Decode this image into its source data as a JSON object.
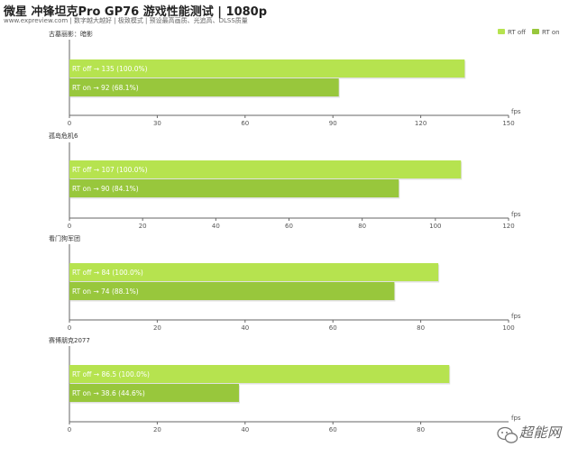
{
  "title": "微星 冲锋坦克Pro GP76 游戏性能测试 | 1080p",
  "subtitle": "www.expreview.com | 数字越大越好 | 极致模式 | 预设最高画质、光追高、DLSS质量",
  "legend": [
    {
      "name": "RT off",
      "color": "#b6e34f"
    },
    {
      "name": "RT on",
      "color": "#98c73c"
    }
  ],
  "watermark": "超能网",
  "chart_data": [
    {
      "type": "bar",
      "orientation": "horizontal",
      "title": "古墓丽影：暗影",
      "xlabel": "fps",
      "xlim": [
        0,
        150
      ],
      "xticks": [
        0,
        30,
        60,
        90,
        120,
        150
      ],
      "series": [
        {
          "name": "RT off",
          "values": [
            135
          ],
          "label": "RT off  →  135 (100.0%)"
        },
        {
          "name": "RT on",
          "values": [
            92
          ],
          "label": "RT on  →  92 (68.1%)"
        }
      ]
    },
    {
      "type": "bar",
      "orientation": "horizontal",
      "title": "孤岛危机6",
      "xlabel": "fps",
      "xlim": [
        0,
        120
      ],
      "xticks": [
        0,
        20,
        40,
        60,
        80,
        100,
        120
      ],
      "series": [
        {
          "name": "RT off",
          "values": [
            107
          ],
          "label": "RT off  →  107 (100.0%)"
        },
        {
          "name": "RT on",
          "values": [
            90
          ],
          "label": "RT on  →  90 (84.1%)"
        }
      ]
    },
    {
      "type": "bar",
      "orientation": "horizontal",
      "title": "看门狗军团",
      "xlabel": "fps",
      "xlim": [
        0,
        100
      ],
      "xticks": [
        0,
        20,
        40,
        60,
        80,
        100
      ],
      "series": [
        {
          "name": "RT off",
          "values": [
            84
          ],
          "label": "RT off  →  84 (100.0%)"
        },
        {
          "name": "RT on",
          "values": [
            74
          ],
          "label": "RT on  →  74 (88.1%)"
        }
      ]
    },
    {
      "type": "bar",
      "orientation": "horizontal",
      "title": "赛博朋克2077",
      "xlabel": "fps",
      "xlim": [
        0,
        100
      ],
      "xticks": [
        0,
        20,
        40,
        60,
        80
      ],
      "series": [
        {
          "name": "RT off",
          "values": [
            86.5
          ],
          "label": "RT off  →  86.5 (100.0%)"
        },
        {
          "name": "RT on",
          "values": [
            38.6
          ],
          "label": "RT on  →  38.6 (44.6%)"
        }
      ]
    }
  ]
}
